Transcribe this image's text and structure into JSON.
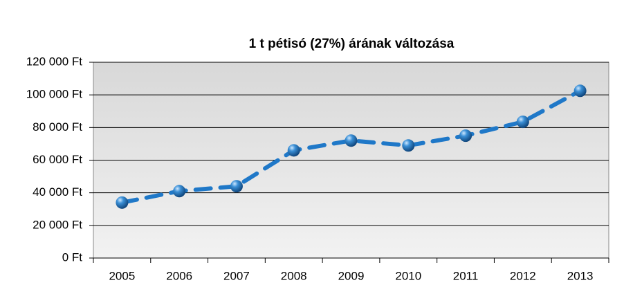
{
  "chart_data": {
    "type": "line",
    "title": "1 t pétisó (27%) árának változása",
    "categories": [
      "2005",
      "2006",
      "2007",
      "2008",
      "2009",
      "2010",
      "2011",
      "2012",
      "2013"
    ],
    "values": [
      34000,
      41000,
      44000,
      66000,
      72000,
      69000,
      75000,
      83500,
      102500
    ],
    "color": "#1f78c8",
    "ylim": [
      0,
      120000
    ],
    "yticks": [
      {
        "value": 0,
        "label": "0 Ft"
      },
      {
        "value": 20000,
        "label": "20 000 Ft"
      },
      {
        "value": 40000,
        "label": "40 000 Ft"
      },
      {
        "value": 60000,
        "label": "60 000 Ft"
      },
      {
        "value": 80000,
        "label": "80 000 Ft"
      },
      {
        "value": 100000,
        "label": "100 000 Ft"
      },
      {
        "value": 120000,
        "label": "120 000 Ft"
      }
    ],
    "grid": true
  }
}
